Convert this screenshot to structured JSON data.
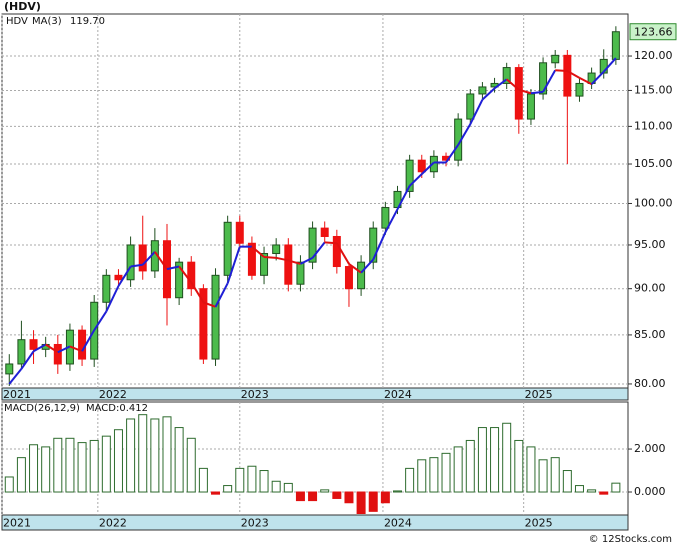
{
  "chart_data": [
    {
      "type": "candlestick",
      "title": "(HDV)",
      "log_scale": true,
      "grid": true,
      "xlim": [
        -0.6,
        51
      ],
      "ylim": [
        79.6,
        126.4
      ],
      "xticks": [
        {
          "value": -0.6,
          "label": "2021"
        },
        {
          "value": 7.3,
          "label": "2022"
        },
        {
          "value": 19.0,
          "label": "2023"
        },
        {
          "value": 30.8,
          "label": "2024"
        },
        {
          "value": 42.4,
          "label": "2025"
        }
      ],
      "yticks": [
        {
          "value": 80,
          "label": "80.00"
        },
        {
          "value": 85,
          "label": "85.00"
        },
        {
          "value": 90,
          "label": "90.00"
        },
        {
          "value": 95,
          "label": "95.00"
        },
        {
          "value": 100,
          "label": "100.00"
        },
        {
          "value": 105,
          "label": "105.00"
        },
        {
          "value": 110,
          "label": "110.00"
        },
        {
          "value": 115,
          "label": "115.00"
        },
        {
          "value": 120,
          "label": "120.00"
        }
      ],
      "series": [
        {
          "name": "HDV",
          "up_color": "#4cbb4c",
          "down_color": "#ee1111",
          "open": [
            81,
            82,
            84.5,
            83.5,
            84,
            82,
            85.5,
            82.5,
            88.5,
            91.5,
            91,
            95,
            92,
            95.5,
            89,
            93,
            90,
            82.5,
            91.5,
            97.7,
            95.2,
            91.5,
            94,
            95,
            90.5,
            93,
            97,
            96,
            92.5,
            90,
            93,
            97,
            99.5,
            101.5,
            105.5,
            104,
            106,
            105.5,
            111,
            114.5,
            115.5,
            116,
            118.3,
            111,
            114.5,
            119,
            120.1,
            114.2,
            116,
            117.5,
            119.5
          ],
          "high": [
            83,
            86.5,
            85.5,
            84.8,
            85,
            86.2,
            86,
            89.3,
            92.2,
            92.2,
            96,
            98.5,
            97,
            97.5,
            93.5,
            93.7,
            90.5,
            92.3,
            98.5,
            98.5,
            96,
            94.8,
            95.8,
            95.8,
            93.8,
            97.8,
            97.8,
            96.8,
            93,
            93.8,
            97.8,
            100.2,
            102.2,
            106.2,
            106.2,
            106.8,
            106.5,
            111.8,
            115.2,
            116.2,
            116.8,
            119,
            118.8,
            115.2,
            119.8,
            120.9,
            120.9,
            116.8,
            118.3,
            121,
            124.5
          ],
          "low": [
            79.8,
            81.5,
            82,
            82.7,
            81,
            81.3,
            81.8,
            81.7,
            87.5,
            90.2,
            90.2,
            91,
            91.2,
            86,
            88.2,
            89.2,
            82,
            81.8,
            90.7,
            94.5,
            91,
            90.5,
            93.2,
            89.7,
            89.7,
            92.2,
            95.2,
            91.7,
            88,
            89.2,
            92.2,
            96.2,
            98.7,
            100.7,
            103.2,
            103.2,
            104.7,
            104.7,
            110.2,
            113.7,
            114.7,
            115.2,
            109,
            110.2,
            113.7,
            118.2,
            105,
            113.4,
            115.2,
            116.7,
            118.7
          ],
          "close": [
            82,
            84.5,
            83.5,
            84,
            82,
            85.5,
            82.5,
            88.5,
            91.5,
            91,
            95,
            92,
            95.5,
            89,
            93,
            90,
            82.5,
            91.5,
            97.7,
            95.2,
            91.5,
            94,
            95,
            90.5,
            93,
            97,
            96,
            92.5,
            90,
            93,
            97,
            99.5,
            101.5,
            105.5,
            104,
            106,
            105.5,
            111,
            114.5,
            115.5,
            116,
            118.3,
            111,
            114.5,
            119,
            120.1,
            114.2,
            116,
            117.5,
            119.5,
            123.66
          ]
        },
        {
          "name": "MA(3)",
          "color": "#1f1fd6",
          "down_color": "#e01010",
          "latest_label": "119.70",
          "values": [
            80,
            81.5,
            83.3,
            84,
            83.2,
            83.8,
            83.3,
            85.5,
            87.5,
            90.3,
            92.5,
            92.7,
            94.2,
            92.2,
            92.5,
            90.7,
            88.5,
            88,
            90.6,
            94.8,
            94.8,
            93.6,
            93.5,
            93.2,
            92.8,
            93.5,
            95.3,
            95.2,
            92.8,
            91.8,
            93.3,
            96.5,
            99.3,
            102.2,
            103.7,
            105.2,
            105.2,
            107.5,
            110.3,
            113.7,
            115.3,
            116.6,
            115.1,
            114.6,
            114.8,
            117.9,
            117.8,
            116.8,
            115.9,
            117.7,
            119.7
          ]
        }
      ]
    },
    {
      "type": "bar",
      "grid": true,
      "xlim": [
        -0.6,
        51
      ],
      "ylim": [
        -1.07,
        4.19
      ],
      "xticks": [
        {
          "value": -0.6,
          "label": "2021"
        },
        {
          "value": 7.3,
          "label": "2022"
        },
        {
          "value": 19.0,
          "label": "2023"
        },
        {
          "value": 30.8,
          "label": "2024"
        },
        {
          "value": 42.4,
          "label": "2025"
        }
      ],
      "yticks": [
        {
          "value": 0,
          "label": "0.000"
        },
        {
          "value": 2,
          "label": "2.000"
        }
      ],
      "series": [
        {
          "name": "MACD(26,12,9)",
          "latest_label": "MACD:0.412",
          "color": "#2e6b2e",
          "negative_color": "#e01010",
          "values": [
            0.7,
            1.6,
            2.2,
            2.1,
            2.5,
            2.5,
            2.3,
            2.4,
            2.6,
            2.9,
            3.4,
            3.6,
            3.4,
            3.5,
            3.0,
            2.5,
            1.1,
            -0.1,
            0.3,
            1.1,
            1.2,
            1.0,
            0.5,
            0.4,
            -0.4,
            -0.4,
            0.1,
            -0.3,
            -0.5,
            -1.0,
            -0.9,
            -0.5,
            0.05,
            1.1,
            1.5,
            1.6,
            1.8,
            2.1,
            2.4,
            3.0,
            3.0,
            3.2,
            2.4,
            2.1,
            1.5,
            1.6,
            1.0,
            0.3,
            0.1,
            -0.1,
            0.412
          ]
        }
      ]
    }
  ],
  "credit": "© 12Stocks.com"
}
